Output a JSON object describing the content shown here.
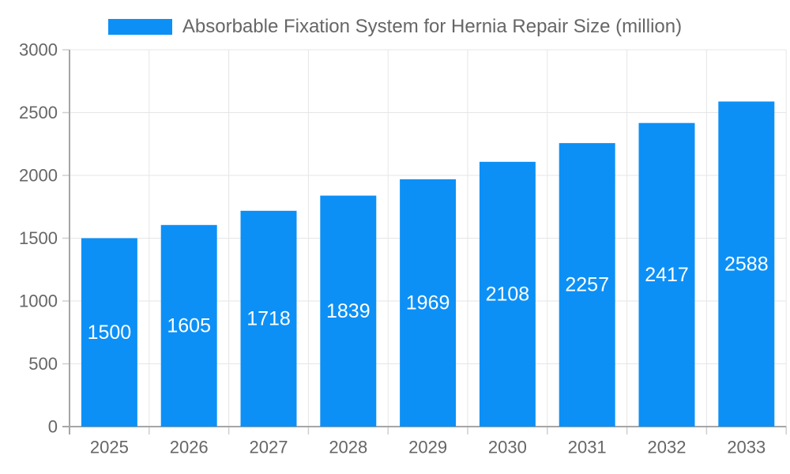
{
  "legend": {
    "label": "Absorbable Fixation System for Hernia Repair Size (million)"
  },
  "chart_data": {
    "type": "bar",
    "title": "Absorbable Fixation System for Hernia Repair Size (million)",
    "categories": [
      "2025",
      "2026",
      "2027",
      "2028",
      "2029",
      "2030",
      "2031",
      "2032",
      "2033"
    ],
    "series": [
      {
        "name": "Absorbable Fixation System for Hernia Repair Size (million)",
        "values": [
          1500,
          1605,
          1718,
          1839,
          1969,
          2108,
          2257,
          2417,
          2588
        ]
      }
    ],
    "value_labels": [
      1500,
      1605,
      1718,
      1839,
      1969,
      2108,
      2257,
      2417,
      2588
    ],
    "xlabel": "",
    "ylabel": "",
    "ylim": [
      0,
      3000
    ],
    "yticks": [
      0,
      500,
      1000,
      1500,
      2000,
      2500,
      3000
    ],
    "grid": true,
    "legend_position": "top",
    "value_label_position": "inside-middle"
  },
  "colors": {
    "bar": "#0c90f6",
    "grid": "#e6e6e6",
    "axis_border": "#a6a6a6",
    "tick_mark": "#cfcfcf",
    "tick_text": "#666666",
    "value_label_text": "#ffffff",
    "background": "#ffffff"
  }
}
